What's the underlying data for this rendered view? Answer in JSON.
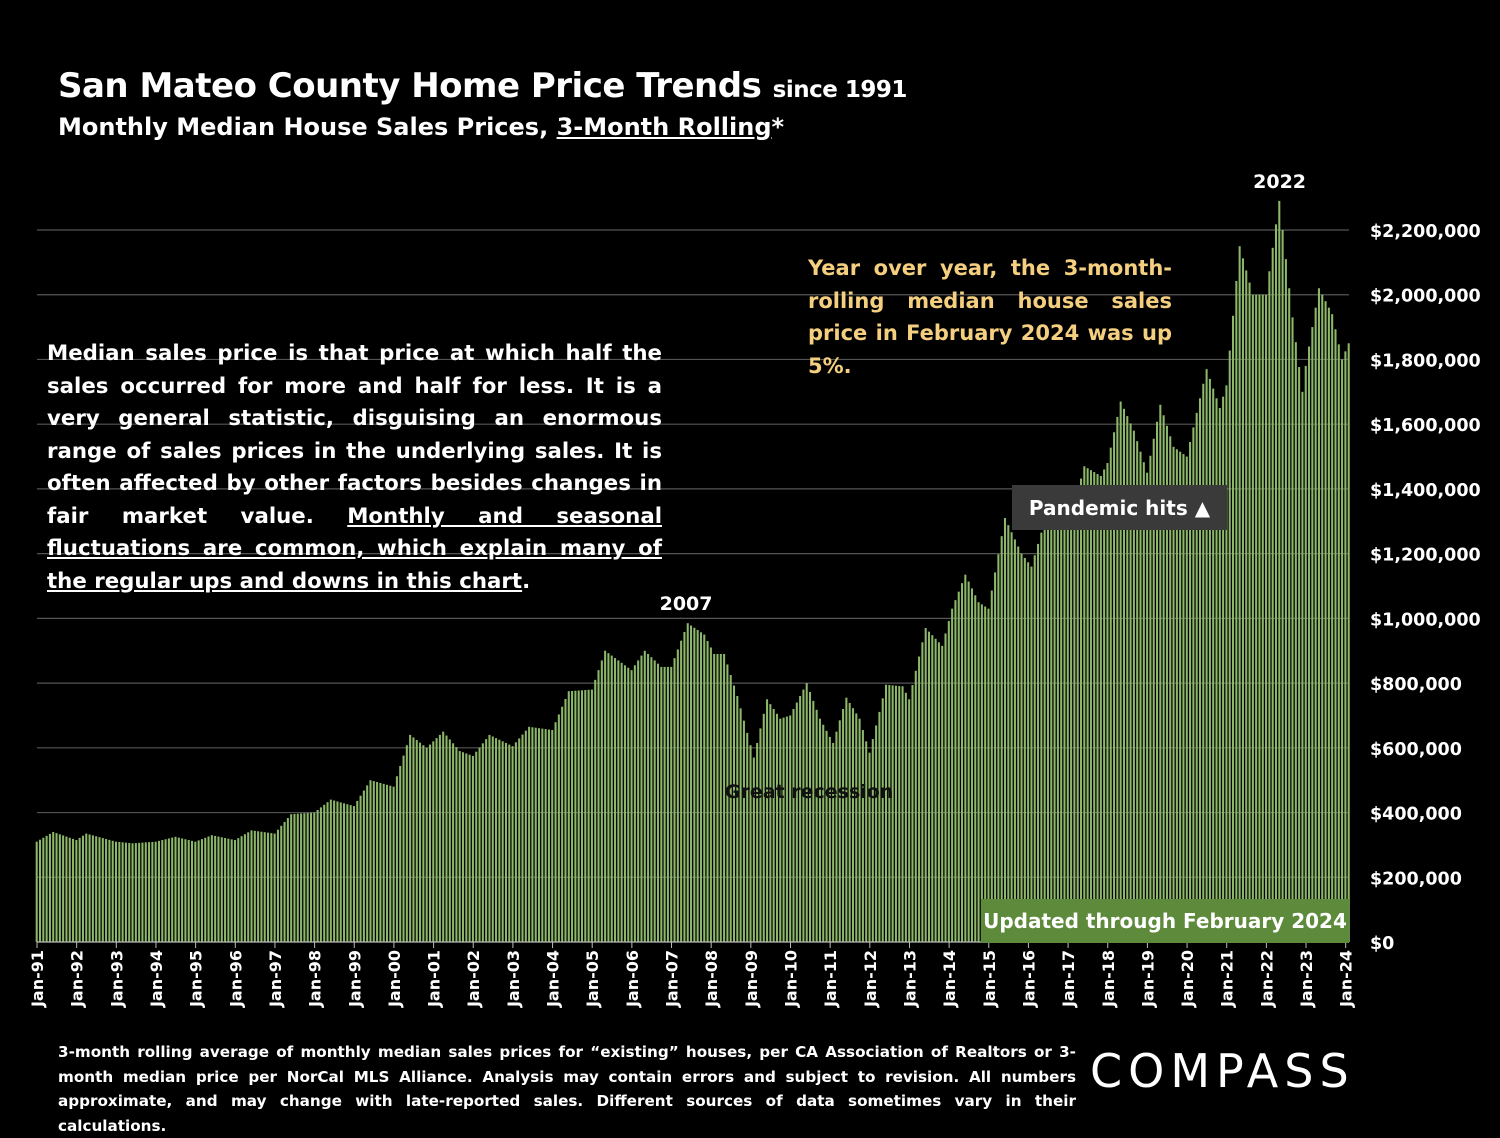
{
  "header": {
    "title": "San Mateo County Home Price Trends",
    "title_suffix": "since 1991",
    "subtitle_prefix": "Monthly Median House Sales Prices, ",
    "subtitle_link": "3-Month Rolling",
    "subtitle_suffix": "*"
  },
  "note": {
    "text": "Median sales price is that price at which half the sales occurred for more and half for less. It is a very general statistic, disguising an enormous range of sales prices in the underlying sales. It is often affected by other factors besides changes in fair market value. ",
    "underlined": "Monthly and seasonal fluctuations are common, which explain many of the regular ups and downs in this chart",
    "end": "."
  },
  "yoy_callout": "Year over year, the 3-month-rolling median house sales price in February 2024 was up 5%.",
  "pandemic_label": "Pandemic hits ▲",
  "updated_label": "Updated through February 2024",
  "footnote": "3-month rolling average of monthly median sales prices for “existing” houses, per CA Association of Realtors or 3-month median price per NorCal MLS Alliance. Analysis may contain errors and subject to revision. All numbers approximate, and may change with late-reported sales. Different sources of data sometimes vary in their calculations.",
  "logo": "COMPASS",
  "colors": {
    "bar": "#8db86a",
    "grid": "#555555",
    "background": "#000000",
    "callout": "#f5cf80"
  },
  "chart_data": {
    "type": "bar",
    "title": "San Mateo County Home Price Trends since 1991",
    "subtitle": "Monthly Median House Sales Prices, 3-Month Rolling*",
    "xlabel": "",
    "ylabel": "",
    "ylim": [
      0,
      2200000
    ],
    "y_ticks": [
      0,
      200000,
      400000,
      600000,
      800000,
      1000000,
      1200000,
      1400000,
      1600000,
      1800000,
      2000000,
      2200000
    ],
    "y_tick_labels": [
      "$0",
      "$200,000",
      "$400,000",
      "$600,000",
      "$800,000",
      "$1,000,000",
      "$1,200,000",
      "$1,400,000",
      "$1,600,000",
      "$1,800,000",
      "$2,000,000",
      "$2,200,000"
    ],
    "x_tick_labels": [
      "Jan-91",
      "Jan-92",
      "Jan-93",
      "Jan-94",
      "Jan-95",
      "Jan-96",
      "Jan-97",
      "Jan-98",
      "Jan-99",
      "Jan-00",
      "Jan-01",
      "Jan-02",
      "Jan-03",
      "Jan-04",
      "Jan-05",
      "Jan-06",
      "Jan-07",
      "Jan-08",
      "Jan-09",
      "Jan-10",
      "Jan-11",
      "Jan-12",
      "Jan-13",
      "Jan-14",
      "Jan-15",
      "Jan-16",
      "Jan-17",
      "Jan-18",
      "Jan-19",
      "Jan-20",
      "Jan-21",
      "Jan-22",
      "Jan-23",
      "Jan-24"
    ],
    "start": "Jan-91",
    "end": "Feb-24",
    "frequency": "monthly",
    "anchors": [
      [
        "1991-01",
        310000
      ],
      [
        "1991-06",
        340000
      ],
      [
        "1992-01",
        315000
      ],
      [
        "1992-04",
        335000
      ],
      [
        "1993-01",
        310000
      ],
      [
        "1993-06",
        305000
      ],
      [
        "1994-01",
        310000
      ],
      [
        "1994-07",
        325000
      ],
      [
        "1995-01",
        310000
      ],
      [
        "1995-06",
        330000
      ],
      [
        "1996-01",
        315000
      ],
      [
        "1996-06",
        345000
      ],
      [
        "1997-01",
        335000
      ],
      [
        "1997-06",
        395000
      ],
      [
        "1998-01",
        400000
      ],
      [
        "1998-06",
        440000
      ],
      [
        "1999-01",
        420000
      ],
      [
        "1999-06",
        500000
      ],
      [
        "2000-01",
        480000
      ],
      [
        "2000-06",
        640000
      ],
      [
        "2000-11",
        600000
      ],
      [
        "2001-04",
        650000
      ],
      [
        "2001-09",
        590000
      ],
      [
        "2002-01",
        575000
      ],
      [
        "2002-06",
        640000
      ],
      [
        "2003-01",
        605000
      ],
      [
        "2003-06",
        665000
      ],
      [
        "2004-01",
        655000
      ],
      [
        "2004-06",
        775000
      ],
      [
        "2005-01",
        780000
      ],
      [
        "2005-05",
        900000
      ],
      [
        "2006-01",
        840000
      ],
      [
        "2006-05",
        900000
      ],
      [
        "2006-10",
        850000
      ],
      [
        "2007-01",
        850000
      ],
      [
        "2007-06",
        985000
      ],
      [
        "2007-11",
        950000
      ],
      [
        "2008-02",
        890000
      ],
      [
        "2008-05",
        890000
      ],
      [
        "2008-09",
        760000
      ],
      [
        "2009-02",
        570000
      ],
      [
        "2009-06",
        750000
      ],
      [
        "2009-10",
        690000
      ],
      [
        "2010-01",
        700000
      ],
      [
        "2010-06",
        800000
      ],
      [
        "2010-10",
        690000
      ],
      [
        "2011-02",
        615000
      ],
      [
        "2011-06",
        755000
      ],
      [
        "2011-10",
        690000
      ],
      [
        "2012-01",
        585000
      ],
      [
        "2012-06",
        795000
      ],
      [
        "2012-11",
        790000
      ],
      [
        "2013-01",
        750000
      ],
      [
        "2013-06",
        970000
      ],
      [
        "2013-11",
        915000
      ],
      [
        "2014-02",
        1030000
      ],
      [
        "2014-06",
        1135000
      ],
      [
        "2014-10",
        1050000
      ],
      [
        "2015-01",
        1030000
      ],
      [
        "2015-06",
        1310000
      ],
      [
        "2015-11",
        1200000
      ],
      [
        "2016-02",
        1160000
      ],
      [
        "2016-06",
        1300000
      ],
      [
        "2016-10",
        1300000
      ],
      [
        "2017-01",
        1280000
      ],
      [
        "2017-06",
        1470000
      ],
      [
        "2017-11",
        1440000
      ],
      [
        "2018-01",
        1480000
      ],
      [
        "2018-05",
        1670000
      ],
      [
        "2018-09",
        1580000
      ],
      [
        "2019-01",
        1450000
      ],
      [
        "2019-05",
        1660000
      ],
      [
        "2019-09",
        1530000
      ],
      [
        "2020-01",
        1500000
      ],
      [
        "2020-07",
        1770000
      ],
      [
        "2020-11",
        1650000
      ],
      [
        "2021-01",
        1720000
      ],
      [
        "2021-05",
        2150000
      ],
      [
        "2021-09",
        2000000
      ],
      [
        "2022-01",
        2000000
      ],
      [
        "2022-05",
        2290000
      ],
      [
        "2022-09",
        1930000
      ],
      [
        "2022-12",
        1700000
      ],
      [
        "2023-01",
        1780000
      ],
      [
        "2023-05",
        2020000
      ],
      [
        "2023-09",
        1940000
      ],
      [
        "2023-12",
        1800000
      ],
      [
        "2024-02",
        1850000
      ]
    ],
    "annotations": [
      {
        "text": "2007",
        "at": "2007-06"
      },
      {
        "text": "2022",
        "at": "2022-05"
      },
      {
        "text": "Great recession",
        "at": "2009-02"
      }
    ]
  }
}
